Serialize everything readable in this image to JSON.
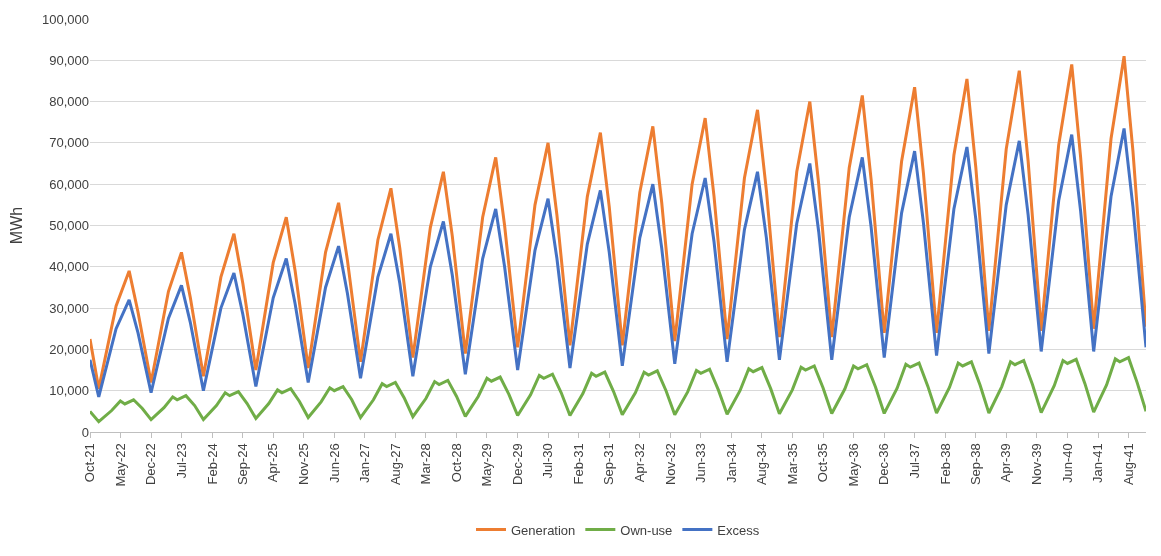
{
  "chart_data": {
    "type": "line",
    "ylabel": "MWh",
    "ylim": [
      0,
      100000
    ],
    "yticks": [
      {
        "value": 0,
        "label": "0"
      },
      {
        "value": 10000,
        "label": "10,000"
      },
      {
        "value": 20000,
        "label": "20,000"
      },
      {
        "value": 30000,
        "label": "30,000"
      },
      {
        "value": 40000,
        "label": "40,000"
      },
      {
        "value": 50000,
        "label": "50,000"
      },
      {
        "value": 60000,
        "label": "60,000"
      },
      {
        "value": 70000,
        "label": "70,000"
      },
      {
        "value": 80000,
        "label": "80,000"
      },
      {
        "value": 90000,
        "label": "90,000"
      },
      {
        "value": 100000,
        "label": "100,000"
      }
    ],
    "xlim": [
      "2021-10",
      "2041-12"
    ],
    "xticks": [
      {
        "value": "2021-10",
        "label": "Oct-21"
      },
      {
        "value": "2022-05",
        "label": "May-22"
      },
      {
        "value": "2022-12",
        "label": "Dec-22"
      },
      {
        "value": "2023-07",
        "label": "Jul-23"
      },
      {
        "value": "2024-02",
        "label": "Feb-24"
      },
      {
        "value": "2024-09",
        "label": "Sep-24"
      },
      {
        "value": "2025-04",
        "label": "Apr-25"
      },
      {
        "value": "2025-11",
        "label": "Nov-25"
      },
      {
        "value": "2026-06",
        "label": "Jun-26"
      },
      {
        "value": "2027-01",
        "label": "Jan-27"
      },
      {
        "value": "2027-08",
        "label": "Aug-27"
      },
      {
        "value": "2028-03",
        "label": "Mar-28"
      },
      {
        "value": "2028-10",
        "label": "Oct-28"
      },
      {
        "value": "2029-05",
        "label": "May-29"
      },
      {
        "value": "2029-12",
        "label": "Dec-29"
      },
      {
        "value": "2030-07",
        "label": "Jul-30"
      },
      {
        "value": "2031-02",
        "label": "Feb-31"
      },
      {
        "value": "2031-09",
        "label": "Sep-31"
      },
      {
        "value": "2032-04",
        "label": "Apr-32"
      },
      {
        "value": "2032-11",
        "label": "Nov-32"
      },
      {
        "value": "2033-06",
        "label": "Jun-33"
      },
      {
        "value": "2034-01",
        "label": "Jan-34"
      },
      {
        "value": "2034-08",
        "label": "Aug-34"
      },
      {
        "value": "2035-03",
        "label": "Mar-35"
      },
      {
        "value": "2035-10",
        "label": "Oct-35"
      },
      {
        "value": "2036-05",
        "label": "May-36"
      },
      {
        "value": "2036-12",
        "label": "Dec-36"
      },
      {
        "value": "2037-07",
        "label": "Jul-37"
      },
      {
        "value": "2038-02",
        "label": "Feb-38"
      },
      {
        "value": "2038-09",
        "label": "Sep-38"
      },
      {
        "value": "2039-04",
        "label": "Apr-39"
      },
      {
        "value": "2039-11",
        "label": "Nov-39"
      },
      {
        "value": "2040-06",
        "label": "Jun-40"
      },
      {
        "value": "2041-01",
        "label": "Jan-41"
      },
      {
        "value": "2041-08",
        "label": "Aug-41"
      }
    ],
    "grid": "y",
    "legend": "bottom",
    "marker": "none",
    "line_style": "solid",
    "series": [
      {
        "name": "Generation",
        "color": "#ed7d31",
        "x": [
          "2021-10",
          "2021-12",
          "2022-04",
          "2022-07",
          "2022-09",
          "2022-12",
          "2023-04",
          "2023-07",
          "2023-09",
          "2023-12",
          "2024-04",
          "2024-07",
          "2024-09",
          "2024-12",
          "2025-04",
          "2025-07",
          "2025-09",
          "2025-12",
          "2026-04",
          "2026-07",
          "2026-09",
          "2026-12",
          "2027-04",
          "2027-07",
          "2027-09",
          "2027-12",
          "2028-04",
          "2028-07",
          "2028-09",
          "2028-12",
          "2029-04",
          "2029-07",
          "2029-09",
          "2029-12",
          "2030-04",
          "2030-07",
          "2030-09",
          "2030-12",
          "2031-04",
          "2031-07",
          "2031-09",
          "2031-12",
          "2032-04",
          "2032-07",
          "2032-09",
          "2032-12",
          "2033-04",
          "2033-07",
          "2033-09",
          "2033-12",
          "2034-04",
          "2034-07",
          "2034-09",
          "2034-12",
          "2035-04",
          "2035-07",
          "2035-09",
          "2035-12",
          "2036-04",
          "2036-07",
          "2036-09",
          "2036-12",
          "2037-04",
          "2037-07",
          "2037-09",
          "2037-12",
          "2038-04",
          "2038-07",
          "2038-09",
          "2038-12",
          "2039-04",
          "2039-07",
          "2039-09",
          "2039-12",
          "2040-04",
          "2040-07",
          "2040-09",
          "2040-12",
          "2041-04",
          "2041-07",
          "2041-09",
          "2041-12"
        ],
        "values": [
          22500,
          10500,
          30500,
          39000,
          29000,
          12000,
          34000,
          43500,
          32500,
          13500,
          37500,
          48000,
          36000,
          15000,
          41000,
          52000,
          39000,
          15500,
          43500,
          55500,
          41500,
          17000,
          46500,
          59000,
          44500,
          18000,
          49500,
          63000,
          47500,
          19000,
          52000,
          66500,
          50000,
          20500,
          55000,
          70000,
          52500,
          21000,
          57000,
          72500,
          54500,
          21000,
          58000,
          74000,
          55500,
          22000,
          60000,
          76000,
          57000,
          22500,
          61500,
          78000,
          58500,
          23000,
          63000,
          80000,
          60000,
          23000,
          64000,
          81500,
          61000,
          24000,
          65500,
          83500,
          62500,
          24000,
          67000,
          85500,
          64000,
          24500,
          68500,
          87500,
          65500,
          24500,
          69500,
          89000,
          66500,
          25000,
          71000,
          91000,
          68000,
          25500
        ]
      },
      {
        "name": "Own-use",
        "color": "#70ad47",
        "x": [
          "2021-10",
          "2021-12",
          "2022-03",
          "2022-05",
          "2022-06",
          "2022-08",
          "2022-10",
          "2022-12",
          "2023-03",
          "2023-05",
          "2023-06",
          "2023-08",
          "2023-10",
          "2023-12",
          "2024-03",
          "2024-05",
          "2024-06",
          "2024-08",
          "2024-10",
          "2024-12",
          "2025-03",
          "2025-05",
          "2025-06",
          "2025-08",
          "2025-10",
          "2025-12",
          "2026-03",
          "2026-05",
          "2026-06",
          "2026-08",
          "2026-10",
          "2026-12",
          "2027-03",
          "2027-05",
          "2027-06",
          "2027-08",
          "2027-10",
          "2027-12",
          "2028-03",
          "2028-05",
          "2028-06",
          "2028-08",
          "2028-10",
          "2028-12",
          "2029-03",
          "2029-05",
          "2029-06",
          "2029-08",
          "2029-10",
          "2029-12",
          "2030-03",
          "2030-05",
          "2030-06",
          "2030-08",
          "2030-10",
          "2030-12",
          "2031-03",
          "2031-05",
          "2031-06",
          "2031-08",
          "2031-10",
          "2031-12",
          "2032-03",
          "2032-05",
          "2032-06",
          "2032-08",
          "2032-10",
          "2032-12",
          "2033-03",
          "2033-05",
          "2033-06",
          "2033-08",
          "2033-10",
          "2033-12",
          "2034-03",
          "2034-05",
          "2034-06",
          "2034-08",
          "2034-10",
          "2034-12",
          "2035-03",
          "2035-05",
          "2035-06",
          "2035-08",
          "2035-10",
          "2035-12",
          "2036-03",
          "2036-05",
          "2036-06",
          "2036-08",
          "2036-10",
          "2036-12",
          "2037-03",
          "2037-05",
          "2037-06",
          "2037-08",
          "2037-10",
          "2037-12",
          "2038-03",
          "2038-05",
          "2038-06",
          "2038-08",
          "2038-10",
          "2038-12",
          "2039-03",
          "2039-05",
          "2039-06",
          "2039-08",
          "2039-10",
          "2039-12",
          "2040-03",
          "2040-05",
          "2040-06",
          "2040-08",
          "2040-10",
          "2040-12",
          "2041-03",
          "2041-05",
          "2041-06",
          "2041-08",
          "2041-10",
          "2041-12"
        ],
        "values": [
          5000,
          2500,
          5200,
          7500,
          6800,
          7800,
          5700,
          3000,
          5900,
          8500,
          7800,
          8800,
          6400,
          3000,
          6400,
          9500,
          8800,
          9800,
          6900,
          3300,
          6900,
          10200,
          9500,
          10500,
          7400,
          3500,
          7300,
          10700,
          10000,
          11000,
          7800,
          3500,
          7800,
          11700,
          11000,
          12000,
          8300,
          3700,
          8100,
          12200,
          11500,
          12500,
          8600,
          3800,
          8600,
          13000,
          12300,
          13300,
          9100,
          4000,
          9000,
          13700,
          13000,
          14000,
          9500,
          4000,
          9300,
          14200,
          13500,
          14500,
          9800,
          4200,
          9500,
          14500,
          13800,
          14800,
          10000,
          4200,
          9700,
          14900,
          14200,
          15200,
          10200,
          4300,
          10000,
          15300,
          14600,
          15600,
          10500,
          4400,
          10200,
          15700,
          15000,
          16000,
          10700,
          4500,
          10400,
          16000,
          15300,
          16300,
          10900,
          4500,
          10600,
          16400,
          15700,
          16700,
          11100,
          4600,
          10800,
          16700,
          16000,
          17000,
          11300,
          4600,
          11000,
          17000,
          16300,
          17300,
          11500,
          4700,
          11200,
          17300,
          16600,
          17600,
          11700,
          4800,
          11400,
          17700,
          17000,
          18000,
          11900,
          5000
        ]
      },
      {
        "name": "Excess",
        "color": "#4472c4",
        "x": [
          "2021-10",
          "2021-12",
          "2022-04",
          "2022-07",
          "2022-09",
          "2022-12",
          "2023-04",
          "2023-07",
          "2023-09",
          "2023-12",
          "2024-04",
          "2024-07",
          "2024-09",
          "2024-12",
          "2025-04",
          "2025-07",
          "2025-09",
          "2025-12",
          "2026-04",
          "2026-07",
          "2026-09",
          "2026-12",
          "2027-04",
          "2027-07",
          "2027-09",
          "2027-12",
          "2028-04",
          "2028-07",
          "2028-09",
          "2028-12",
          "2029-04",
          "2029-07",
          "2029-09",
          "2029-12",
          "2030-04",
          "2030-07",
          "2030-09",
          "2030-12",
          "2031-04",
          "2031-07",
          "2031-09",
          "2031-12",
          "2032-04",
          "2032-07",
          "2032-09",
          "2032-12",
          "2033-04",
          "2033-07",
          "2033-09",
          "2033-12",
          "2034-04",
          "2034-07",
          "2034-09",
          "2034-12",
          "2035-04",
          "2035-07",
          "2035-09",
          "2035-12",
          "2036-04",
          "2036-07",
          "2036-09",
          "2036-12",
          "2037-04",
          "2037-07",
          "2037-09",
          "2037-12",
          "2038-04",
          "2038-07",
          "2038-09",
          "2038-12",
          "2039-04",
          "2039-07",
          "2039-09",
          "2039-12",
          "2040-04",
          "2040-07",
          "2040-09",
          "2040-12",
          "2041-04",
          "2041-07",
          "2041-09",
          "2041-12"
        ],
        "values": [
          17500,
          8500,
          25000,
          32000,
          24000,
          9500,
          27500,
          35500,
          26500,
          10000,
          30000,
          38500,
          28500,
          11000,
          32500,
          42000,
          31000,
          12000,
          35000,
          45000,
          33500,
          13000,
          37500,
          48000,
          36000,
          13500,
          40000,
          51000,
          38000,
          14000,
          42000,
          54000,
          40000,
          15000,
          44000,
          56500,
          42000,
          15500,
          45500,
          58500,
          43500,
          16000,
          47000,
          60000,
          44500,
          16500,
          48000,
          61500,
          46000,
          17000,
          49000,
          63000,
          47000,
          17500,
          50500,
          65000,
          48500,
          17500,
          52000,
          66500,
          49500,
          18000,
          53000,
          68000,
          50500,
          18500,
          54000,
          69000,
          51500,
          19000,
          55000,
          70500,
          52500,
          19500,
          56000,
          72000,
          53500,
          19500,
          57000,
          73500,
          54500,
          20500
        ]
      }
    ]
  }
}
